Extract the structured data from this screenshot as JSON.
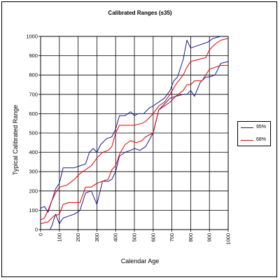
{
  "chart_data": {
    "type": "line",
    "title": "Calibrated Ranges (s35)",
    "xlabel": "Calendar Age",
    "ylabel": "Typical Calibrated Range",
    "xlim": [
      0,
      1000
    ],
    "ylim": [
      0,
      1000
    ],
    "xticks": [
      "0",
      "100",
      "200",
      "300",
      "400",
      "500",
      "600",
      "700",
      "800",
      "900",
      "1000"
    ],
    "yticks": [
      "0",
      "100",
      "200",
      "300",
      "400",
      "500",
      "600",
      "700",
      "800",
      "900",
      "1000"
    ],
    "grid": true,
    "legend_position": "right",
    "series": [
      {
        "name": "95%",
        "color": "#1a1a8c",
        "lower": {
          "x": [
            0,
            30,
            60,
            80,
            100,
            120,
            150,
            180,
            210,
            240,
            270,
            300,
            330,
            360,
            380,
            400,
            420,
            450,
            480,
            500,
            530,
            560,
            600,
            630,
            660,
            690,
            720,
            760,
            780,
            800,
            820,
            850,
            880,
            900,
            930,
            960,
            1000
          ],
          "y": [
            -60,
            -40,
            20,
            80,
            30,
            60,
            70,
            80,
            100,
            190,
            200,
            130,
            250,
            250,
            260,
            300,
            380,
            400,
            410,
            420,
            410,
            430,
            500,
            620,
            650,
            680,
            690,
            700,
            700,
            720,
            690,
            760,
            790,
            790,
            800,
            860,
            870
          ]
        },
        "upper": {
          "x": [
            0,
            20,
            40,
            60,
            80,
            100,
            120,
            150,
            180,
            210,
            240,
            260,
            280,
            300,
            320,
            350,
            380,
            400,
            420,
            450,
            480,
            500,
            520,
            550,
            580,
            600,
            630,
            660,
            690,
            710,
            730,
            760,
            780,
            800,
            830,
            860,
            890,
            920,
            960,
            1000
          ],
          "y": [
            110,
            120,
            90,
            150,
            210,
            240,
            320,
            320,
            320,
            330,
            340,
            400,
            420,
            400,
            440,
            470,
            480,
            520,
            590,
            590,
            610,
            590,
            600,
            600,
            630,
            640,
            660,
            680,
            720,
            770,
            790,
            880,
            980,
            940,
            950,
            960,
            970,
            990,
            1000,
            1010
          ]
        }
      },
      {
        "name": "68%",
        "color": "#e00000",
        "lower": {
          "x": [
            0,
            40,
            70,
            100,
            120,
            150,
            180,
            210,
            240,
            270,
            300,
            330,
            360,
            380,
            400,
            420,
            450,
            480,
            510,
            540,
            560,
            600,
            630,
            660,
            690,
            720,
            760,
            780,
            800,
            820,
            860,
            900,
            930,
            960,
            1000
          ],
          "y": [
            30,
            40,
            70,
            80,
            130,
            140,
            140,
            140,
            220,
            220,
            240,
            250,
            260,
            310,
            330,
            390,
            440,
            460,
            450,
            460,
            480,
            500,
            620,
            640,
            660,
            690,
            720,
            750,
            750,
            770,
            770,
            830,
            840,
            850,
            850
          ]
        },
        "upper": {
          "x": [
            0,
            20,
            40,
            60,
            80,
            100,
            140,
            180,
            210,
            240,
            270,
            300,
            330,
            360,
            380,
            400,
            420,
            460,
            500,
            540,
            560,
            600,
            630,
            660,
            690,
            720,
            760,
            780,
            800,
            840,
            880,
            900,
            930,
            960,
            1000
          ],
          "y": [
            50,
            60,
            100,
            150,
            190,
            220,
            230,
            260,
            290,
            310,
            330,
            370,
            400,
            410,
            430,
            500,
            540,
            540,
            540,
            550,
            560,
            600,
            640,
            660,
            700,
            750,
            800,
            840,
            870,
            880,
            890,
            930,
            960,
            980,
            990
          ]
        }
      }
    ]
  }
}
